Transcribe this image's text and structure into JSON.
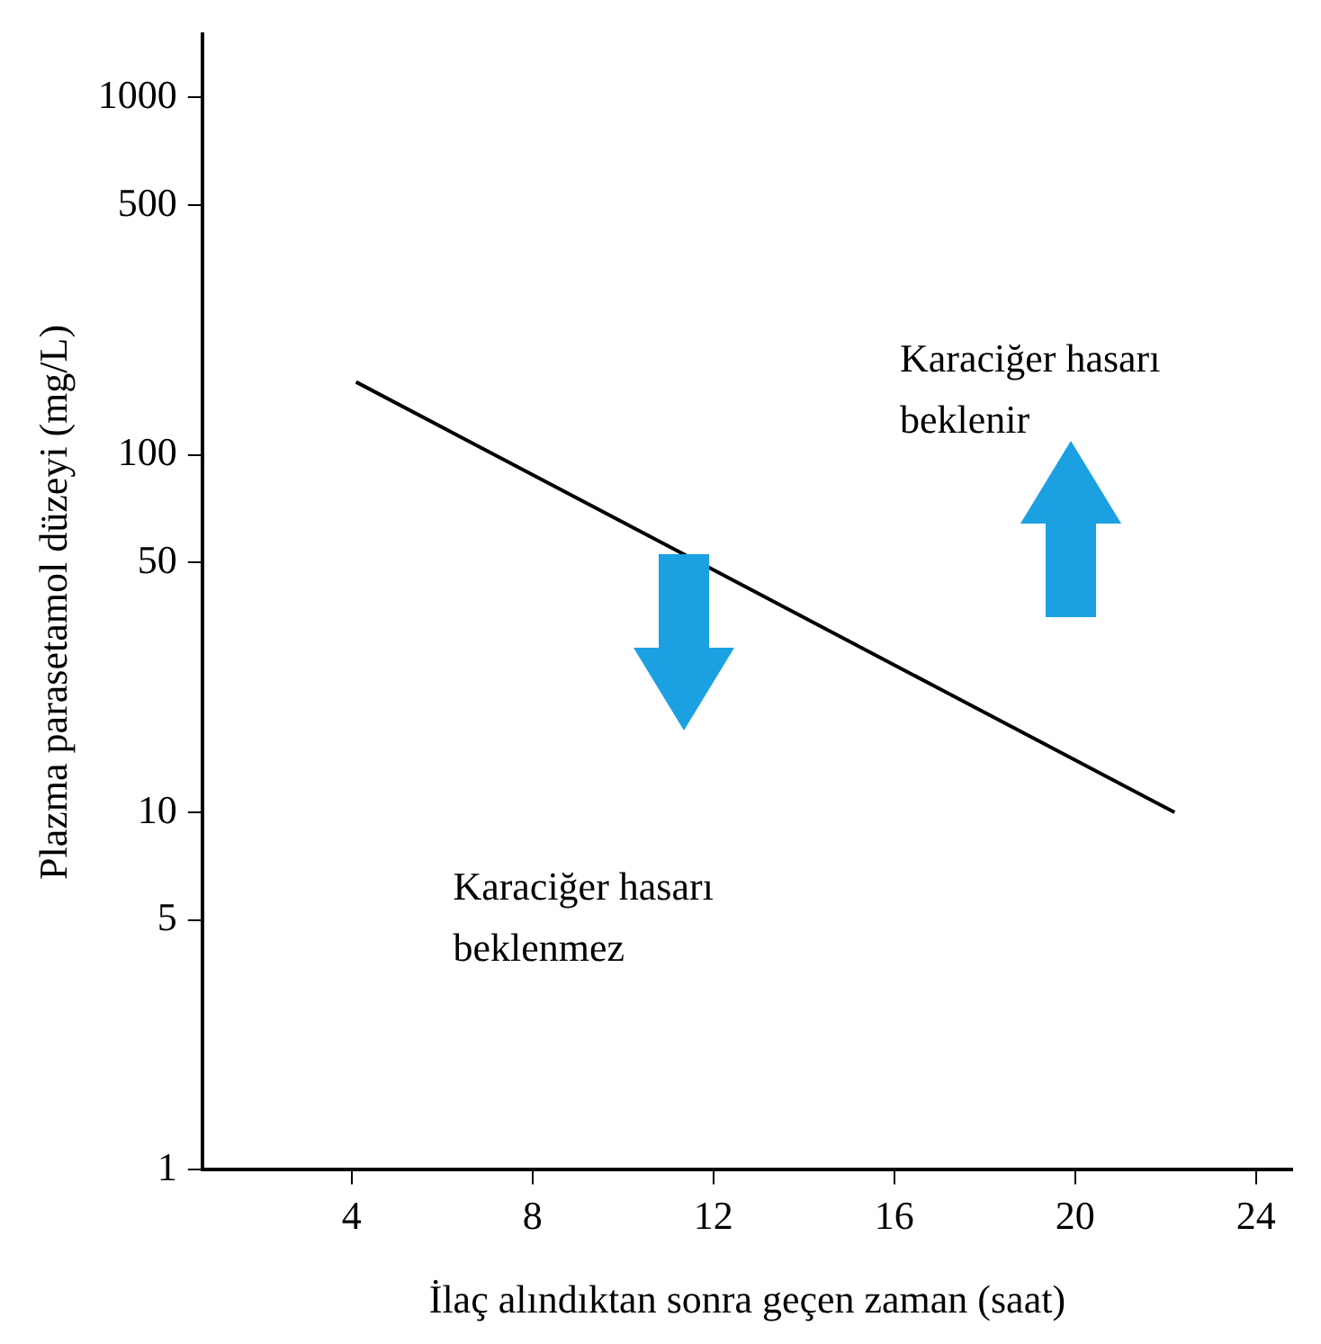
{
  "chart_data": {
    "type": "line",
    "xlabel": "İlaç alındıktan sonra geçen zaman (saat)",
    "ylabel": "Plazma parasetamol düzeyi (mg/L)",
    "x": [
      4.1,
      22.2
    ],
    "series": [
      {
        "color": "#000000",
        "values": [
          160,
          10
        ]
      }
    ],
    "xlim": [
      0.7,
      24.8
    ],
    "xticks": [
      4,
      8,
      12,
      16,
      20,
      24
    ],
    "ylim": [
      1,
      1500
    ],
    "yticks": [
      1,
      5,
      10,
      50,
      100,
      500,
      1000
    ],
    "log": "y",
    "grid": false,
    "legend": false,
    "marker": "none",
    "line_style": "solid",
    "annotations": [
      "Karaciğer hasarı\nbeklenir",
      "Karaciğer hasarı\nbeklenmez"
    ]
  }
}
